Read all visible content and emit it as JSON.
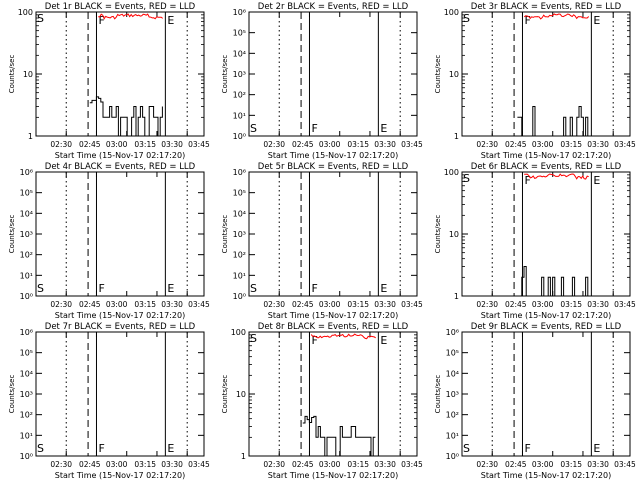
{
  "chart_data": [
    {
      "type": "line",
      "title": "Det 1r BLACK = Events, RED = LLD",
      "xlabel": "Start Time (15-Nov-17 02:17:20)",
      "ylabel": "Counts/sec",
      "yscale": "log",
      "ylim": [
        1,
        100
      ],
      "ytick_labels": [
        "1",
        "10",
        "100"
      ],
      "xtick_labels": [
        "02:30",
        "02:45",
        "03:00",
        "03:15",
        "03:30",
        "03:45"
      ],
      "markers": [
        "S",
        "F",
        "E"
      ],
      "black_trace": "high",
      "red_trace": true
    },
    {
      "type": "line",
      "title": "Det 2r BLACK = Events, RED = LLD",
      "xlabel": "Start Time (15-Nov-17 02:17:20)",
      "ylabel": "Counts/sec",
      "yscale": "log",
      "ylim": [
        1,
        1000000
      ],
      "ytick_labels": [
        "10⁰",
        "10¹",
        "10²",
        "10³",
        "10⁴",
        "10⁵",
        "10⁶"
      ],
      "xtick_labels": [
        "02:30",
        "02:45",
        "03:00",
        "03:15",
        "03:30",
        "03:45"
      ],
      "markers": [
        "S",
        "F",
        "E"
      ],
      "black_trace": "none",
      "red_trace": false
    },
    {
      "type": "line",
      "title": "Det 3r BLACK = Events, RED = LLD",
      "xlabel": "Start Time (15-Nov-17 02:17:20)",
      "ylabel": "Counts/sec",
      "yscale": "log",
      "ylim": [
        1,
        100
      ],
      "ytick_labels": [
        "1",
        "10",
        "100"
      ],
      "xtick_labels": [
        "02:30",
        "02:45",
        "03:00",
        "03:15",
        "03:30",
        "03:45"
      ],
      "markers": [
        "S",
        "F",
        "E"
      ],
      "black_trace": "low",
      "red_trace": true
    },
    {
      "type": "line",
      "title": "Det 4r BLACK = Events, RED = LLD",
      "xlabel": "Start Time (15-Nov-17 02:17:20)",
      "ylabel": "Counts/sec",
      "yscale": "log",
      "ylim": [
        1,
        1000000
      ],
      "ytick_labels": [
        "10⁰",
        "10¹",
        "10²",
        "10³",
        "10⁴",
        "10⁵",
        "10⁶"
      ],
      "xtick_labels": [
        "02:30",
        "02:45",
        "03:00",
        "03:15",
        "03:30",
        "03:45"
      ],
      "markers": [
        "S",
        "F",
        "E"
      ],
      "black_trace": "none",
      "red_trace": false
    },
    {
      "type": "line",
      "title": "Det 5r BLACK = Events, RED = LLD",
      "xlabel": "Start Time (15-Nov-17 02:17:20)",
      "ylabel": "Counts/sec",
      "yscale": "log",
      "ylim": [
        1,
        1000000
      ],
      "ytick_labels": [
        "10⁰",
        "10¹",
        "10²",
        "10³",
        "10⁴",
        "10⁵",
        "10⁶"
      ],
      "xtick_labels": [
        "02:30",
        "02:45",
        "03:00",
        "03:15",
        "03:30",
        "03:45"
      ],
      "markers": [
        "S",
        "F",
        "E"
      ],
      "black_trace": "none",
      "red_trace": false
    },
    {
      "type": "line",
      "title": "Det 6r BLACK = Events, RED = LLD",
      "xlabel": "Start Time (15-Nov-17 02:17:20)",
      "ylabel": "Counts/sec",
      "yscale": "log",
      "ylim": [
        1,
        100
      ],
      "ytick_labels": [
        "1",
        "10",
        "100"
      ],
      "xtick_labels": [
        "02:30",
        "02:45",
        "03:00",
        "03:15",
        "03:30",
        "03:45"
      ],
      "markers": [
        "S",
        "F",
        "E"
      ],
      "black_trace": "low",
      "red_trace": true
    },
    {
      "type": "line",
      "title": "Det 7r BLACK = Events, RED = LLD",
      "xlabel": "Start Time (15-Nov-17 02:17:20)",
      "ylabel": "Counts/sec",
      "yscale": "log",
      "ylim": [
        1,
        1000000
      ],
      "ytick_labels": [
        "10⁰",
        "10¹",
        "10²",
        "10³",
        "10⁴",
        "10⁵",
        "10⁶"
      ],
      "xtick_labels": [
        "02:30",
        "02:45",
        "03:00",
        "03:15",
        "03:30",
        "03:45"
      ],
      "markers": [
        "S",
        "F",
        "E"
      ],
      "black_trace": "none",
      "red_trace": false
    },
    {
      "type": "line",
      "title": "Det 8r BLACK = Events, RED = LLD",
      "xlabel": "Start Time (15-Nov-17 02:17:20)",
      "ylabel": "Counts/sec",
      "yscale": "log",
      "ylim": [
        1,
        100
      ],
      "ytick_labels": [
        "1",
        "10",
        "100"
      ],
      "xtick_labels": [
        "02:30",
        "02:45",
        "03:00",
        "03:15",
        "03:30",
        "03:45"
      ],
      "markers": [
        "S",
        "F",
        "E"
      ],
      "black_trace": "high",
      "red_trace": true
    },
    {
      "type": "line",
      "title": "Det 9r BLACK = Events, RED = LLD",
      "xlabel": "Start Time (15-Nov-17 02:17:20)",
      "ylabel": "Counts/sec",
      "yscale": "log",
      "ylim": [
        1,
        1000000
      ],
      "ytick_labels": [
        "10⁰",
        "10¹",
        "10²",
        "10³",
        "10⁴",
        "10⁵",
        "10⁶"
      ],
      "xtick_labels": [
        "02:30",
        "02:45",
        "03:00",
        "03:15",
        "03:30",
        "03:45"
      ],
      "markers": [
        "S",
        "F",
        "E"
      ],
      "black_trace": "none",
      "red_trace": false
    }
  ]
}
